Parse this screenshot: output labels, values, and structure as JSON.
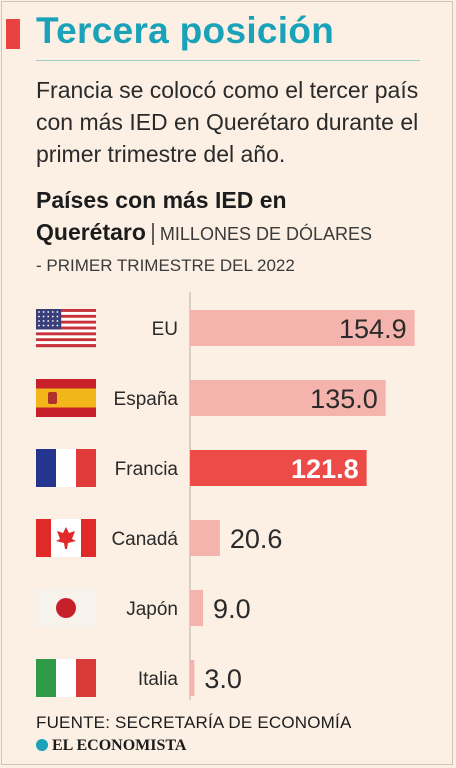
{
  "header": {
    "title": "Tercera posición",
    "accent_color": "#e8433f",
    "title_color": "#1aa2b9",
    "subtitle": "Francia se colocó como el tercer país con más IED en Querétaro durante el primer trimestre del año."
  },
  "chart_data": {
    "type": "bar",
    "orientation": "horizontal",
    "title": "Países con más IED en Querétaro",
    "unit": "MILLONES DE DÓLARES",
    "subtitle": "- PRIMER TRIMESTRE DEL 2022",
    "categories": [
      "EU",
      "España",
      "Francia",
      "Canadá",
      "Japón",
      "Italia"
    ],
    "values": [
      154.9,
      135.0,
      121.8,
      20.6,
      9.0,
      3.0
    ],
    "value_labels": [
      "154.9",
      "135.0",
      "121.8",
      "20.6",
      "9.0",
      "3.0"
    ],
    "flags": [
      "usa-flag-icon",
      "spain-flag-icon",
      "france-flag-icon",
      "canada-flag-icon",
      "japan-flag-icon",
      "italy-flag-icon"
    ],
    "highlight": "Francia",
    "bar_color": "#f4b3ad",
    "highlight_color": "#ec4b47",
    "xlim": [
      0,
      160
    ],
    "grid": false
  },
  "footer": {
    "source": "FUENTE: SECRETARÍA DE ECONOMÍA",
    "brand": "EL ECONOMISTA"
  }
}
